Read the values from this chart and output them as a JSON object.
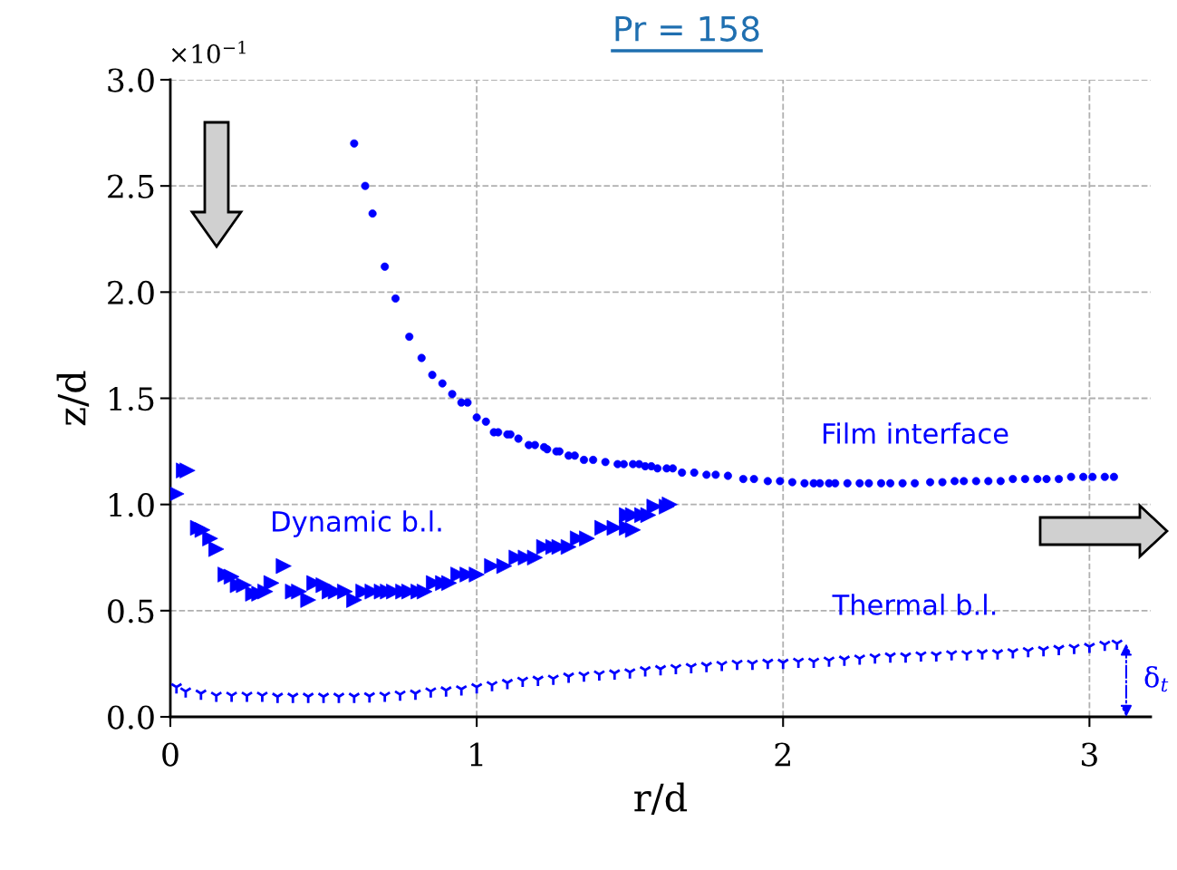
{
  "chart_data": {
    "type": "scatter",
    "title": "Pr = 158",
    "xlabel": "r/d",
    "ylabel": "z/d",
    "xlim": [
      0,
      3.2
    ],
    "ylim": [
      0,
      3.0
    ],
    "xticks": [
      0,
      1,
      2,
      3
    ],
    "yticks": [
      {
        "value": 0,
        "label": "0.0"
      },
      0.5,
      {
        "value": 1,
        "label": "1.0"
      },
      1.5,
      {
        "value": 2,
        "label": "2.0"
      },
      2.5,
      {
        "value": 3,
        "label": "3.0"
      }
    ],
    "grid": true,
    "legend": false,
    "series": [
      {
        "color": "#0000ff",
        "marker": "circle",
        "x": [
          0.6,
          0.636,
          0.66,
          0.7,
          0.735,
          0.78,
          0.82,
          0.855,
          0.888,
          0.92,
          0.95,
          0.97,
          1.0,
          1.03,
          1.056,
          1.07,
          1.1,
          1.11,
          1.136,
          1.17,
          1.19,
          1.22,
          1.23,
          1.26,
          1.27,
          1.3,
          1.32,
          1.35,
          1.38,
          1.42,
          1.46,
          1.48,
          1.51,
          1.53,
          1.55,
          1.57,
          1.59,
          1.62,
          1.64,
          1.67,
          1.71,
          1.75,
          1.78,
          1.82,
          1.87,
          1.905,
          1.95,
          1.99,
          2.03,
          2.07,
          2.1,
          2.12,
          2.15,
          2.17,
          2.21,
          2.25,
          2.28,
          2.32,
          2.35,
          2.39,
          2.43,
          2.48,
          2.52,
          2.56,
          2.59,
          2.63,
          2.67,
          2.71,
          2.75,
          2.79,
          2.83,
          2.86,
          2.9,
          2.94,
          2.98,
          3.01,
          3.05,
          3.08
        ],
        "values": [
          2.7,
          2.5,
          2.37,
          2.12,
          1.97,
          1.79,
          1.69,
          1.61,
          1.57,
          1.52,
          1.48,
          1.48,
          1.41,
          1.39,
          1.34,
          1.34,
          1.33,
          1.33,
          1.31,
          1.28,
          1.28,
          1.27,
          1.26,
          1.25,
          1.25,
          1.23,
          1.23,
          1.21,
          1.21,
          1.2,
          1.19,
          1.19,
          1.19,
          1.19,
          1.18,
          1.18,
          1.17,
          1.17,
          1.17,
          1.15,
          1.15,
          1.14,
          1.14,
          1.135,
          1.12,
          1.12,
          1.11,
          1.11,
          1.105,
          1.1,
          1.1,
          1.1,
          1.1,
          1.1,
          1.1,
          1.1,
          1.1,
          1.1,
          1.1,
          1.1,
          1.1,
          1.105,
          1.105,
          1.11,
          1.11,
          1.11,
          1.11,
          1.11,
          1.12,
          1.12,
          1.12,
          1.12,
          1.12,
          1.13,
          1.13,
          1.13,
          1.13,
          1.13
        ]
      },
      {
        "color": "#0000ff",
        "marker": "triangle",
        "x": [
          0.02,
          0.044,
          0.056,
          0.09,
          0.105,
          0.13,
          0.15,
          0.18,
          0.2,
          0.22,
          0.24,
          0.27,
          0.29,
          0.31,
          0.33,
          0.37,
          0.4,
          0.42,
          0.45,
          0.47,
          0.5,
          0.52,
          0.54,
          0.57,
          0.6,
          0.63,
          0.66,
          0.69,
          0.71,
          0.73,
          0.76,
          0.78,
          0.81,
          0.83,
          0.86,
          0.89,
          0.91,
          0.94,
          0.97,
          1.0,
          1.05,
          1.09,
          1.13,
          1.16,
          1.19,
          1.22,
          1.25,
          1.27,
          1.3,
          1.33,
          1.36,
          1.41,
          1.45,
          1.49,
          1.51,
          1.49,
          1.51,
          1.54,
          1.56,
          1.58,
          1.62,
          1.63
        ],
        "values": [
          1.05,
          1.16,
          1.16,
          0.89,
          0.88,
          0.84,
          0.79,
          0.67,
          0.66,
          0.62,
          0.62,
          0.58,
          0.58,
          0.59,
          0.63,
          0.71,
          0.59,
          0.59,
          0.55,
          0.63,
          0.62,
          0.59,
          0.59,
          0.59,
          0.55,
          0.59,
          0.59,
          0.59,
          0.59,
          0.59,
          0.59,
          0.59,
          0.59,
          0.59,
          0.63,
          0.63,
          0.63,
          0.67,
          0.67,
          0.67,
          0.71,
          0.71,
          0.75,
          0.75,
          0.75,
          0.8,
          0.8,
          0.8,
          0.8,
          0.84,
          0.84,
          0.89,
          0.89,
          0.89,
          0.88,
          0.95,
          0.95,
          0.95,
          0.95,
          0.99,
          0.99,
          1.0
        ]
      },
      {
        "color": "#0000ff",
        "marker": "cross",
        "x": [
          0.02,
          0.05,
          0.1,
          0.15,
          0.2,
          0.25,
          0.3,
          0.35,
          0.4,
          0.45,
          0.5,
          0.55,
          0.6,
          0.65,
          0.7,
          0.75,
          0.8,
          0.85,
          0.9,
          0.95,
          1.0,
          1.05,
          1.1,
          1.15,
          1.2,
          1.25,
          1.3,
          1.35,
          1.4,
          1.45,
          1.5,
          1.55,
          1.6,
          1.65,
          1.7,
          1.75,
          1.8,
          1.85,
          1.9,
          1.95,
          2.0,
          2.05,
          2.1,
          2.15,
          2.2,
          2.25,
          2.3,
          2.35,
          2.4,
          2.45,
          2.5,
          2.55,
          2.6,
          2.65,
          2.7,
          2.75,
          2.8,
          2.85,
          2.9,
          2.95,
          3.0,
          3.05,
          3.09
        ],
        "values": [
          0.14,
          0.12,
          0.11,
          0.1,
          0.1,
          0.1,
          0.1,
          0.095,
          0.095,
          0.095,
          0.095,
          0.095,
          0.095,
          0.097,
          0.1,
          0.105,
          0.11,
          0.12,
          0.125,
          0.13,
          0.14,
          0.15,
          0.16,
          0.17,
          0.175,
          0.18,
          0.19,
          0.195,
          0.2,
          0.205,
          0.21,
          0.22,
          0.225,
          0.23,
          0.235,
          0.24,
          0.245,
          0.25,
          0.25,
          0.255,
          0.255,
          0.26,
          0.26,
          0.265,
          0.27,
          0.275,
          0.28,
          0.285,
          0.285,
          0.29,
          0.29,
          0.295,
          0.295,
          0.3,
          0.3,
          0.305,
          0.31,
          0.315,
          0.32,
          0.325,
          0.33,
          0.34,
          0.345
        ]
      }
    ],
    "annotations": [
      "×10$^{−1}$",
      "Film interface",
      "Dynamic b.l.",
      "Thermal b.l.",
      "δ$_{t}$"
    ]
  }
}
